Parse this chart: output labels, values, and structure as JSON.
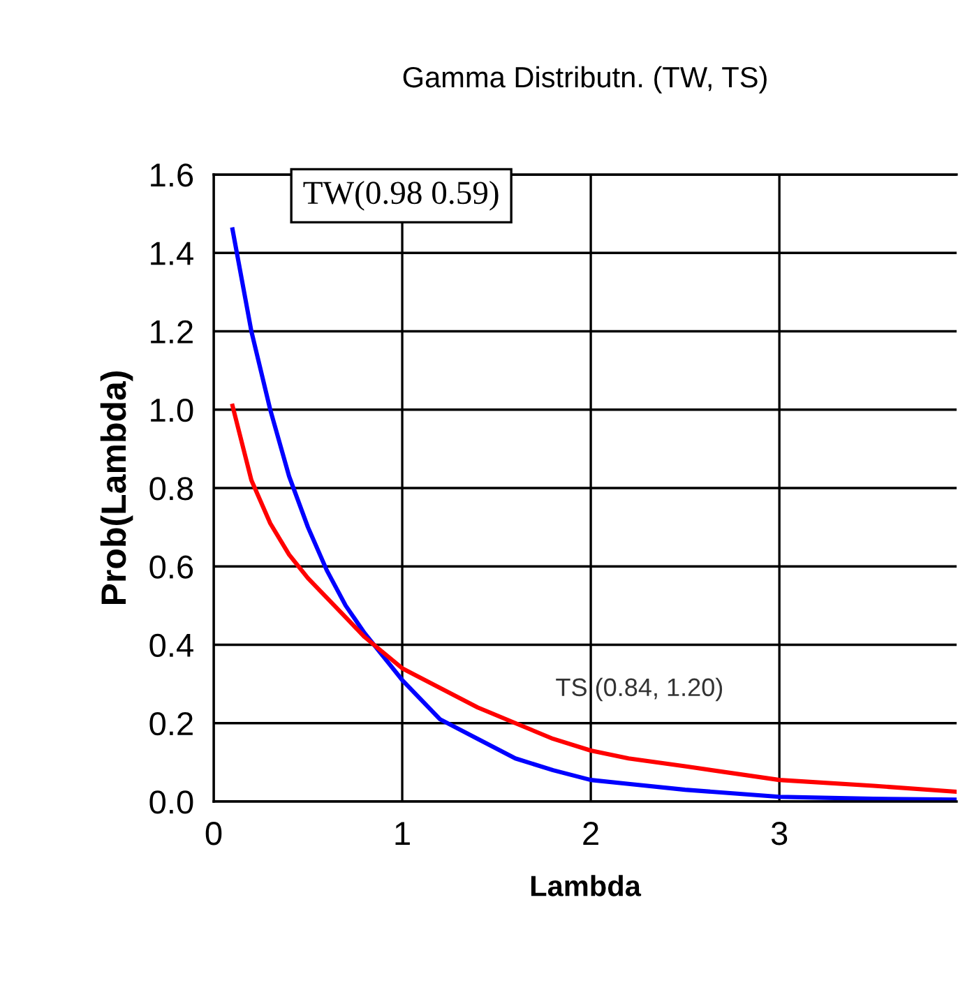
{
  "chart_data": {
    "type": "line",
    "title": "Gamma Distributn. (TW, TS)",
    "xlabel": "Lambda",
    "ylabel": "Prob(Lambda)",
    "xlim": [
      0,
      3.94
    ],
    "ylim": [
      0,
      1.6
    ],
    "xticks": [
      0,
      1,
      2,
      3
    ],
    "yticks": [
      {
        "value": 0,
        "label": "0.0"
      },
      {
        "value": 0.2,
        "label": "0.2"
      },
      {
        "value": 0.4,
        "label": "0.4"
      },
      {
        "value": 0.6,
        "label": "0.6"
      },
      {
        "value": 0.8,
        "label": "0.8"
      },
      {
        "value": 1.0,
        "label": "1.0"
      },
      {
        "value": 1.2,
        "label": "1.2"
      },
      {
        "value": 1.4,
        "label": "1.4"
      },
      {
        "value": 1.6,
        "label": "1.6"
      }
    ],
    "grid": true,
    "legend": false,
    "marker": "none",
    "line_style": "solid",
    "annotations": [
      "TW(0.98 0.59)",
      "TS (0.84, 1.20)"
    ],
    "series": [
      {
        "color": "#0000ff",
        "x": [
          0.1,
          0.2,
          0.3,
          0.4,
          0.5,
          0.6,
          0.7,
          0.8,
          0.9,
          1.0,
          1.1,
          1.2,
          1.4,
          1.6,
          1.8,
          2.0,
          2.2,
          2.5,
          3.0,
          3.5,
          3.94
        ],
        "values": [
          1.46,
          1.2,
          1.0,
          0.83,
          0.7,
          0.59,
          0.5,
          0.43,
          0.37,
          0.31,
          0.26,
          0.21,
          0.16,
          0.11,
          0.08,
          0.055,
          0.045,
          0.03,
          0.012,
          0.007,
          0.005
        ]
      },
      {
        "color": "#ff0000",
        "x": [
          0.1,
          0.2,
          0.3,
          0.4,
          0.5,
          0.6,
          0.7,
          0.8,
          0.9,
          1.0,
          1.2,
          1.4,
          1.6,
          1.8,
          2.0,
          2.2,
          2.5,
          3.0,
          3.5,
          3.94
        ],
        "values": [
          1.01,
          0.82,
          0.71,
          0.63,
          0.57,
          0.52,
          0.47,
          0.42,
          0.38,
          0.34,
          0.29,
          0.24,
          0.2,
          0.16,
          0.13,
          0.11,
          0.09,
          0.055,
          0.04,
          0.025
        ]
      }
    ]
  }
}
